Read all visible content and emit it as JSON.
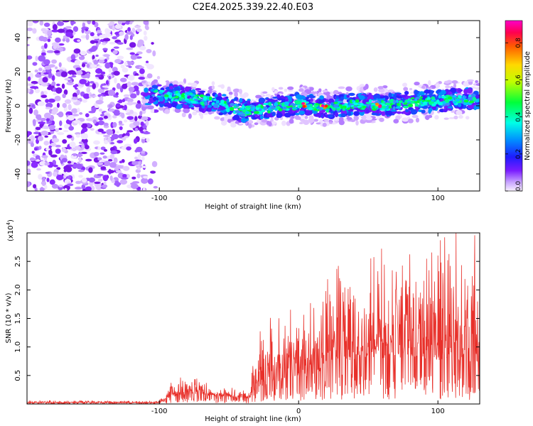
{
  "title": "C2E4.2025.339.22.40.E03",
  "chart_data": [
    {
      "type": "heatmap",
      "title": "C2E4.2025.339.22.40.E03",
      "xlabel": "Height of straight line (km)",
      "ylabel": "Frequency (Hz)",
      "xlim": [
        -195,
        130
      ],
      "ylim": [
        -50,
        50
      ],
      "xticks": [
        -100,
        0,
        100
      ],
      "yticks": [
        40,
        20,
        0,
        -20,
        -40
      ],
      "colorbar": {
        "label": "Normalized spectral amplitude",
        "range": [
          0.0,
          0.92
        ],
        "ticks": [
          0.0,
          0.2,
          0.4,
          0.6,
          0.8
        ],
        "tick_labels": [
          "0.0",
          "0.2",
          "0.4",
          "0.6",
          "0.8"
        ]
      },
      "features": {
        "noise_region_x": [
          -195,
          -108
        ],
        "signal_band_center_hz": [
          [
            -110,
            7
          ],
          [
            -95,
            6
          ],
          [
            -80,
            5
          ],
          [
            -60,
            2
          ],
          [
            -40,
            -3
          ],
          [
            -20,
            -1
          ],
          [
            0,
            1
          ],
          [
            20,
            -1
          ],
          [
            40,
            1
          ],
          [
            60,
            0
          ],
          [
            80,
            2
          ],
          [
            100,
            3
          ],
          [
            128,
            4
          ]
        ],
        "peak_amplitude_near_x": [
          5,
          18,
          58
        ]
      }
    },
    {
      "type": "line",
      "xlabel": "Height of straight line (km)",
      "ylabel": "SNR (10 * v/v)",
      "y_multiplier_label": "(x10",
      "y_multiplier_exp": "4",
      "y_multiplier_close": ")",
      "xlim": [
        -195,
        130
      ],
      "ylim": [
        0,
        3.0
      ],
      "xticks": [
        -100,
        0,
        100
      ],
      "yticks": [
        0.5,
        1.0,
        1.5,
        2.0,
        2.5
      ],
      "ytick_labels": [
        "0.5",
        "1.0",
        "1.5",
        "2.0",
        "2.5"
      ],
      "series": [
        {
          "name": "SNR",
          "color": "#e8302a",
          "envelope": [
            {
              "x": -195,
              "base": 0.02,
              "amp": 0.03
            },
            {
              "x": -100,
              "base": 0.02,
              "amp": 0.03
            },
            {
              "x": -92,
              "base": 0.12,
              "amp": 0.2
            },
            {
              "x": -78,
              "base": 0.18,
              "amp": 0.22
            },
            {
              "x": -60,
              "base": 0.14,
              "amp": 0.15
            },
            {
              "x": -35,
              "base": 0.1,
              "amp": 0.1
            },
            {
              "x": -30,
              "base": 0.3,
              "amp": 0.7
            },
            {
              "x": -10,
              "base": 0.4,
              "amp": 1.0
            },
            {
              "x": 10,
              "base": 0.5,
              "amp": 1.1
            },
            {
              "x": 30,
              "base": 0.75,
              "amp": 1.3
            },
            {
              "x": 60,
              "base": 0.8,
              "amp": 1.3
            },
            {
              "x": 90,
              "base": 0.8,
              "amp": 1.4
            },
            {
              "x": 110,
              "base": 0.75,
              "amp": 1.6
            },
            {
              "x": 130,
              "base": 0.7,
              "amp": 1.4
            }
          ],
          "peak": {
            "x": 113,
            "y": 3.0
          }
        }
      ]
    }
  ]
}
